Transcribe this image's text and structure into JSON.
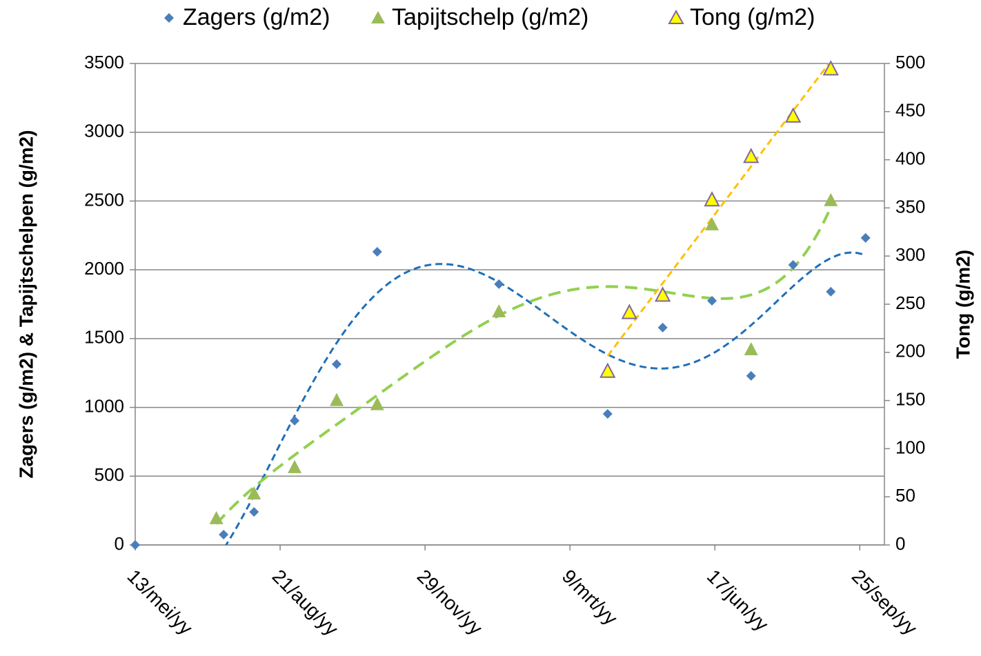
{
  "chart_data": {
    "type": "scatter",
    "xticks": [
      {
        "value": 0,
        "label": "13/mei/yy"
      },
      {
        "value": 100,
        "label": "21/aug/yy"
      },
      {
        "value": 200,
        "label": "29/nov/yy"
      },
      {
        "value": 300,
        "label": "9/mrt/yy"
      },
      {
        "value": 400,
        "label": "17/jun/yy"
      },
      {
        "value": 500,
        "label": "25/sep/yy"
      }
    ],
    "xlim": [
      0,
      517
    ],
    "ylim": [
      0,
      3500
    ],
    "yticks": [
      0,
      500,
      1000,
      1500,
      2000,
      2500,
      3000,
      3500
    ],
    "y2lim": [
      0,
      500
    ],
    "y2ticks": [
      0,
      50,
      100,
      150,
      200,
      250,
      300,
      350,
      400,
      450,
      500
    ],
    "ylabel": "Zagers (g/m2)  &  Tapijtschelpen (g/m2)",
    "y2label": "Tong (g/m2)",
    "grid": true,
    "legend": "top",
    "series": [
      {
        "name": "Zagers (g/m2)",
        "marker": "diamond",
        "color": "#4a7ebb",
        "trendline": {
          "order": 5,
          "color": "#1f6fb8"
        },
        "x": [
          0,
          61,
          82,
          110,
          139,
          167,
          251,
          326,
          364,
          398,
          425,
          454,
          480,
          504
        ],
        "values": [
          0,
          75,
          240,
          903,
          1314,
          2131,
          1896,
          953,
          1580,
          1775,
          1229,
          2036,
          1841,
          2232
        ]
      },
      {
        "name": "Tapijtschelp (g/m2)",
        "marker": "triangle",
        "color": "#9bbb59",
        "trendline": {
          "order": 5,
          "color": "#92d050"
        },
        "x": [
          56,
          82,
          110,
          139,
          167,
          251,
          341,
          364,
          398,
          425,
          480
        ],
        "values": [
          191,
          371,
          562,
          1050,
          1020,
          1695,
          1690,
          1810,
          2327,
          1419,
          2503
        ]
      },
      {
        "name": "Tong (g/m2)",
        "marker": "triangle-outline",
        "color": "#ffff00",
        "stroke": "#8064a2",
        "axis": "y2",
        "trendline": {
          "order": 1,
          "color": "#ffc000"
        },
        "x": [
          326,
          341,
          364,
          398,
          425,
          454,
          480
        ],
        "values": [
          180,
          241,
          259,
          358,
          403,
          445,
          494
        ]
      }
    ]
  }
}
